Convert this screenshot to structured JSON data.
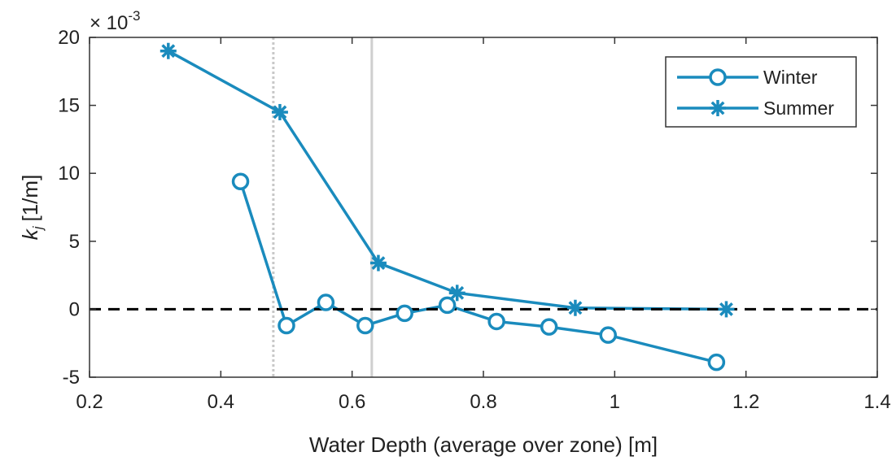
{
  "chart_data": {
    "type": "line",
    "xlabel": "Water Depth (average over zone) [m]",
    "ylabel_main": "k",
    "ylabel_sub": "j",
    "ylabel_unit": "[1/m]",
    "y_exponent_base": "× 10",
    "y_exponent_power": "-3",
    "xlim": [
      0.2,
      1.4
    ],
    "ylim": [
      -5,
      20
    ],
    "xticks": [
      0.2,
      0.4,
      0.6,
      0.8,
      1.0,
      1.2,
      1.4
    ],
    "xtick_labels": [
      "0.2",
      "0.4",
      "0.6",
      "0.8",
      "1",
      "1.2",
      "1.4"
    ],
    "yticks": [
      -5,
      0,
      5,
      10,
      15,
      20
    ],
    "ytick_labels": [
      "-5",
      "0",
      "5",
      "10",
      "15",
      "20"
    ],
    "grid": false,
    "legend_position": "top-right",
    "reference_lines": {
      "horizontal_dashed_y": 0,
      "vertical_dotted_x": 0.48,
      "vertical_solid_x": 0.63
    },
    "series": [
      {
        "name": "Winter",
        "marker": "circle",
        "color": "#1a8bbd",
        "x": [
          0.43,
          0.5,
          0.56,
          0.62,
          0.68,
          0.745,
          0.82,
          0.9,
          0.99,
          1.155
        ],
        "y": [
          9.4,
          -1.2,
          0.5,
          -1.2,
          -0.3,
          0.3,
          -0.9,
          -1.3,
          -1.9,
          -3.9
        ]
      },
      {
        "name": "Summer",
        "marker": "asterisk",
        "color": "#1a8bbd",
        "x": [
          0.32,
          0.49,
          0.64,
          0.76,
          0.94,
          1.17
        ],
        "y": [
          19.0,
          14.5,
          3.4,
          1.2,
          0.1,
          0.0
        ]
      }
    ]
  }
}
